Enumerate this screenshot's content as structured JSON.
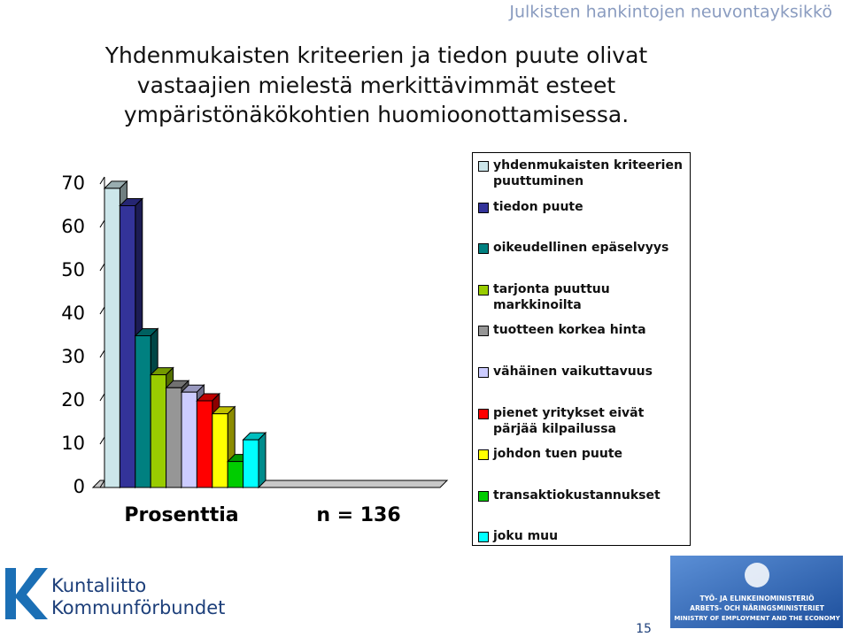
{
  "header": "Julkisten hankintojen neuvontayksikkö",
  "title_lines": [
    "Yhdenmukaisten kriteerien ja tiedon puute olivat",
    "vastaajien mielestä merkittävimmät esteet",
    "ympäristönäkökohtien huomioonottamisessa."
  ],
  "chart_data": {
    "type": "bar",
    "categories": [
      "Prosenttia"
    ],
    "annotation": "n = 136",
    "ylim": [
      0,
      70
    ],
    "yticks": [
      0,
      10,
      20,
      30,
      40,
      50,
      60,
      70
    ],
    "series": [
      {
        "name": "yhdenmukaisten kriteerien puuttuminen",
        "color": "#cce6ea",
        "values": [
          69
        ]
      },
      {
        "name": "tiedon puute",
        "color": "#333399",
        "values": [
          65
        ]
      },
      {
        "name": "oikeudellinen epäselvyys",
        "color": "#008080",
        "values": [
          35
        ]
      },
      {
        "name": "tarjonta puuttuu markkinoilta",
        "color": "#99cc00",
        "values": [
          26
        ]
      },
      {
        "name": "tuotteen korkea hinta",
        "color": "#969696",
        "values": [
          23
        ]
      },
      {
        "name": "vähäinen vaikuttavuus",
        "color": "#ccccff",
        "values": [
          22
        ]
      },
      {
        "name": "pienet yritykset eivät pärjää kilpailussa",
        "color": "#ff0000",
        "values": [
          20
        ]
      },
      {
        "name": "johdon tuen puute",
        "color": "#ffff00",
        "values": [
          17
        ]
      },
      {
        "name": "transaktiokustannukset",
        "color": "#00cc00",
        "values": [
          6
        ]
      },
      {
        "name": "joku muu",
        "color": "#00ffff",
        "values": [
          11
        ]
      }
    ]
  },
  "footer": {
    "logo_lines": [
      "Kuntaliitto",
      "Kommunförbundet"
    ],
    "ministry_lines": [
      "TYÖ- JA ELINKEINOMINISTERIÖ",
      "ARBETS- OCH NÄRINGSMINISTERIET",
      "MINISTRY OF EMPLOYMENT AND THE ECONOMY"
    ],
    "page_number": "15"
  }
}
